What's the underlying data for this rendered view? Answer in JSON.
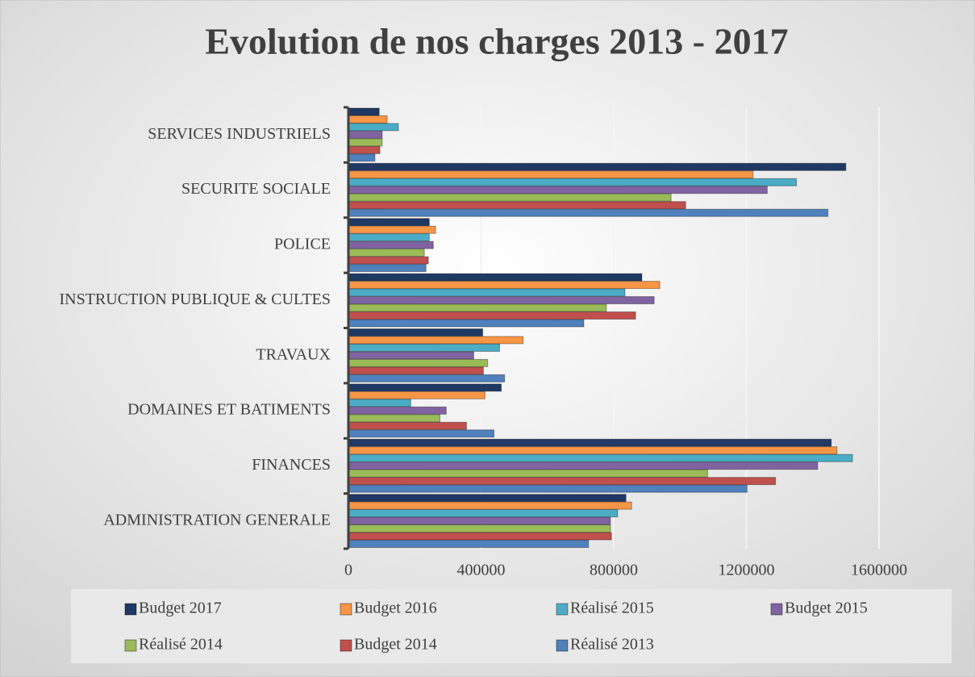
{
  "chart_data": {
    "type": "hbar",
    "title": "Evolution de nos charges 2013 - 2017",
    "categories": [
      "SERVICES INDUSTRIELS",
      "SECURITE SOCIALE",
      "POLICE",
      "INSTRUCTION PUBLIQUE & CULTES",
      "TRAVAUX",
      "DOMAINES ET BATIMENTS",
      "FINANCES",
      "ADMINISTRATION GENERALE"
    ],
    "series": [
      {
        "name": "Budget 2017",
        "color": "#1f3864",
        "values": [
          93000,
          1500000,
          244000,
          885000,
          405000,
          461000,
          1456000,
          837000
        ]
      },
      {
        "name": "Budget 2016",
        "color": "#f79646",
        "values": [
          117000,
          1220000,
          263000,
          939000,
          527000,
          412000,
          1473000,
          854000
        ]
      },
      {
        "name": "Réalisé 2015",
        "color": "#4bacc6",
        "values": [
          151000,
          1351000,
          244000,
          834000,
          456000,
          188000,
          1520000,
          812000
        ]
      },
      {
        "name": "Budget 2015",
        "color": "#8064a2",
        "values": [
          102000,
          1263000,
          256000,
          922000,
          378000,
          295000,
          1415000,
          790000
        ]
      },
      {
        "name": "Réalisé 2014",
        "color": "#9bbb59",
        "values": [
          102000,
          973000,
          229000,
          778000,
          420000,
          276000,
          1083000,
          790000
        ]
      },
      {
        "name": "Budget 2014",
        "color": "#c0504d",
        "values": [
          95000,
          1017000,
          241000,
          866000,
          407000,
          356000,
          1288000,
          793000
        ]
      },
      {
        "name": "Réalisé 2013",
        "color": "#4f81bd",
        "values": [
          80000,
          1446000,
          234000,
          710000,
          471000,
          439000,
          1202000,
          724000
        ]
      }
    ],
    "xlim": [
      0,
      1600000
    ],
    "xticks": [
      0,
      400000,
      800000,
      1200000,
      1600000
    ],
    "grid": true,
    "legend": "bottom"
  }
}
